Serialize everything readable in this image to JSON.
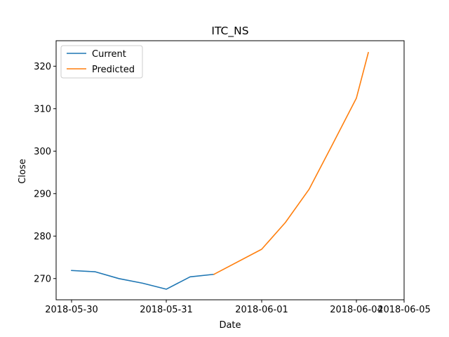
{
  "chart_data": {
    "type": "line",
    "title": "ITC_NS",
    "xlabel": "Date",
    "ylabel": "Close",
    "x_axis": {
      "type": "date",
      "ticks": [
        "2018-05-30",
        "2018-05-31",
        "2018-06-01",
        "2018-06-04",
        "2018-06-05"
      ]
    },
    "ylim": [
      265,
      326
    ],
    "y_ticks": [
      270,
      280,
      290,
      300,
      310,
      320
    ],
    "legend_position": "top-left",
    "grid": false,
    "series": [
      {
        "name": "Current",
        "color": "#1f77b4",
        "points": [
          {
            "x": "2018-05-30 00:00",
            "y": 271.9
          },
          {
            "x": "2018-05-30 06:00",
            "y": 271.6
          },
          {
            "x": "2018-05-30 12:00",
            "y": 270.0
          },
          {
            "x": "2018-05-30 18:00",
            "y": 268.9
          },
          {
            "x": "2018-05-31 00:00",
            "y": 267.5
          },
          {
            "x": "2018-05-31 06:00",
            "y": 270.4
          },
          {
            "x": "2018-05-31 12:00",
            "y": 271.0
          }
        ]
      },
      {
        "name": "Predicted",
        "color": "#ff7f0e",
        "points": [
          {
            "x": "2018-05-31 12:00",
            "y": 271.0
          },
          {
            "x": "2018-06-01 00:00",
            "y": 276.9
          },
          {
            "x": "2018-06-01 06:00",
            "y": 283.2
          },
          {
            "x": "2018-06-01 12:00",
            "y": 291.0
          },
          {
            "x": "2018-06-01 18:00",
            "y": 301.7
          },
          {
            "x": "2018-06-04 00:00",
            "y": 312.5
          },
          {
            "x": "2018-06-04 06:00",
            "y": 323.2
          }
        ]
      }
    ]
  }
}
